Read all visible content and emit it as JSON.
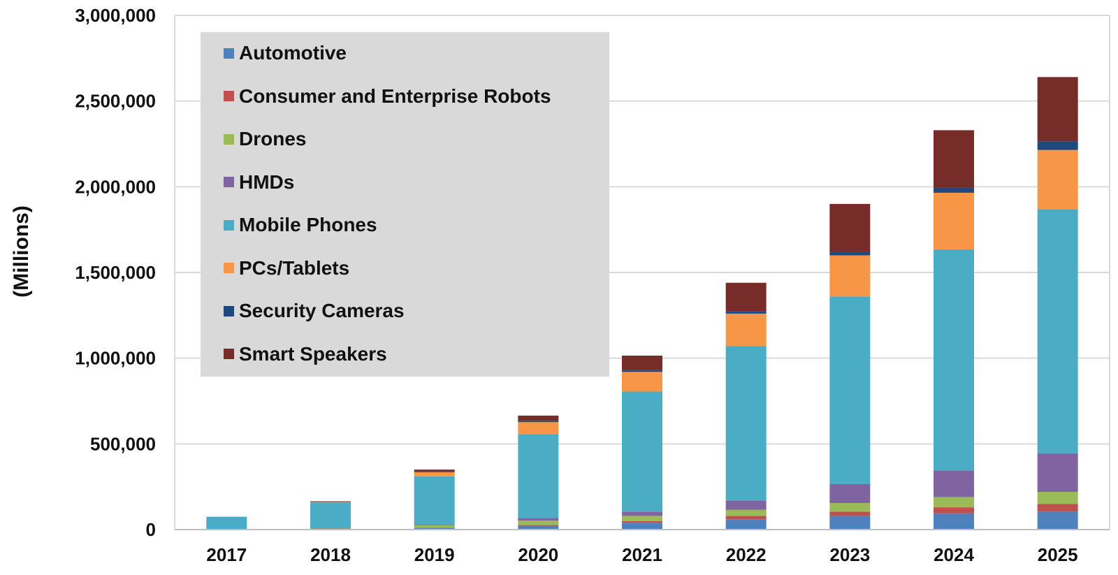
{
  "chart_data": {
    "type": "bar",
    "stacked": true,
    "title": "",
    "xlabel": "",
    "ylabel": "(Millions)",
    "ylim": [
      0,
      3000000
    ],
    "yticks": [
      "0",
      "500,000",
      "1,000,000",
      "1,500,000",
      "2,000,000",
      "2,500,000",
      "3,000,000"
    ],
    "grid": true,
    "legend_position": "top-left",
    "categories": [
      "2017",
      "2018",
      "2019",
      "2020",
      "2021",
      "2022",
      "2023",
      "2024",
      "2025"
    ],
    "series": [
      {
        "name": "Automotive",
        "color": "#4f81bd",
        "values": [
          0,
          2000,
          8000,
          22000,
          40000,
          60000,
          80000,
          95000,
          105000
        ]
      },
      {
        "name": "Consumer and Enterprise Robots",
        "color": "#c0504d",
        "values": [
          0,
          1000,
          2000,
          5000,
          10000,
          20000,
          25000,
          35000,
          45000
        ]
      },
      {
        "name": "Drones",
        "color": "#9bbb59",
        "values": [
          0,
          3000,
          15000,
          25000,
          30000,
          35000,
          50000,
          60000,
          70000
        ]
      },
      {
        "name": "HMDs",
        "color": "#8064a2",
        "values": [
          0,
          2000,
          5000,
          15000,
          25000,
          55000,
          110000,
          155000,
          225000
        ]
      },
      {
        "name": "Mobile Phones",
        "color": "#4bacc6",
        "values": [
          75000,
          150000,
          280000,
          490000,
          700000,
          900000,
          1095000,
          1290000,
          1425000
        ]
      },
      {
        "name": "PCs/Tablets",
        "color": "#f79646",
        "values": [
          0,
          3000,
          25000,
          70000,
          115000,
          190000,
          240000,
          330000,
          345000
        ]
      },
      {
        "name": "Security Cameras",
        "color": "#1f497d",
        "values": [
          0,
          2000,
          5000,
          8000,
          10000,
          15000,
          20000,
          30000,
          50000
        ]
      },
      {
        "name": "Smart Speakers",
        "color": "#772c2a",
        "values": [
          0,
          2000,
          10000,
          30000,
          85000,
          165000,
          280000,
          335000,
          375000
        ]
      }
    ]
  }
}
